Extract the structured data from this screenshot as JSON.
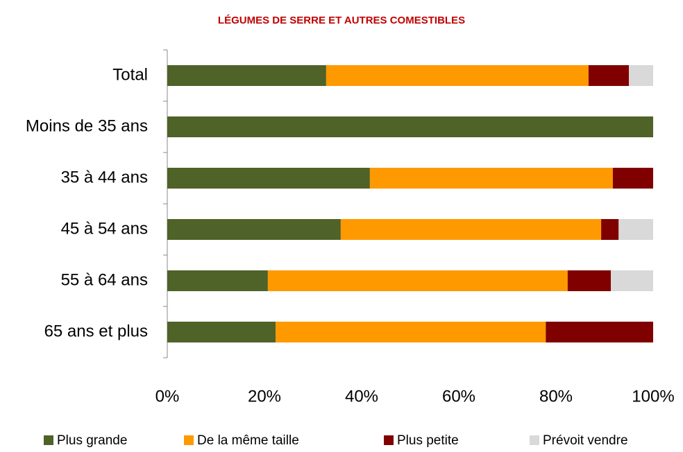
{
  "chart_data": {
    "type": "stacked_bar_horizontal",
    "title": "LÉGUMES DE SERRE ET AUTRES COMESTIBLES",
    "categories": [
      "Total",
      "Moins de 35 ans",
      "35 à 44 ans",
      "45 à 54 ans",
      "55 à 64 ans",
      "65 ans et plus"
    ],
    "series": [
      {
        "name": "Plus grande",
        "color": "#4f6228",
        "values": [
          32.7,
          100,
          41.7,
          35.7,
          20.7,
          22.3
        ]
      },
      {
        "name": "De la même taille",
        "color": "#ff9900",
        "values": [
          54.0,
          0,
          50.0,
          53.6,
          61.7,
          55.6
        ]
      },
      {
        "name": "Plus petite",
        "color": "#800000",
        "values": [
          8.3,
          0,
          8.3,
          3.6,
          8.9,
          22.1
        ]
      },
      {
        "name": "Prévoit vendre",
        "color": "#d9d9d9",
        "values": [
          5.0,
          0,
          0,
          7.1,
          8.7,
          0
        ]
      }
    ],
    "xlim": [
      0,
      100
    ],
    "xticks": [
      {
        "value": 0,
        "label": "0%"
      },
      {
        "value": 20,
        "label": "20%"
      },
      {
        "value": 40,
        "label": "40%"
      },
      {
        "value": 60,
        "label": "60%"
      },
      {
        "value": 80,
        "label": "80%"
      },
      {
        "value": 100,
        "label": "100%"
      }
    ],
    "legend": "bottom"
  }
}
